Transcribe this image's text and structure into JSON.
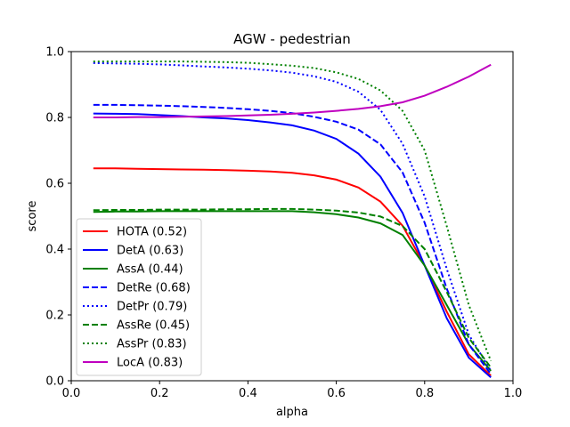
{
  "chart_data": {
    "type": "line",
    "title": "AGW - pedestrian",
    "xlabel": "alpha",
    "ylabel": "score",
    "xlim": [
      0.0,
      1.0
    ],
    "ylim": [
      0.0,
      1.0
    ],
    "xticks": [
      "0.0",
      "0.2",
      "0.4",
      "0.6",
      "0.8",
      "1.0"
    ],
    "yticks": [
      "0.0",
      "0.2",
      "0.4",
      "0.6",
      "0.8",
      "1.0"
    ],
    "grid": false,
    "legend_position": "lower-left",
    "x": [
      0.05,
      0.1,
      0.15,
      0.2,
      0.25,
      0.3,
      0.35,
      0.4,
      0.45,
      0.5,
      0.55,
      0.6,
      0.65,
      0.7,
      0.75,
      0.8,
      0.85,
      0.9,
      0.95
    ],
    "series": [
      {
        "name": "HOTA (0.52)",
        "color": "#ff0000",
        "style": "solid",
        "values": [
          0.645,
          0.645,
          0.644,
          0.643,
          0.642,
          0.641,
          0.64,
          0.638,
          0.636,
          0.632,
          0.624,
          0.611,
          0.587,
          0.544,
          0.471,
          0.35,
          0.21,
          0.08,
          0.015
        ]
      },
      {
        "name": "DetA (0.63)",
        "color": "#0000ff",
        "style": "solid",
        "values": [
          0.812,
          0.811,
          0.81,
          0.807,
          0.804,
          0.8,
          0.797,
          0.792,
          0.785,
          0.776,
          0.76,
          0.735,
          0.69,
          0.62,
          0.51,
          0.35,
          0.19,
          0.07,
          0.01
        ]
      },
      {
        "name": "AssA (0.44)",
        "color": "#008000",
        "style": "solid",
        "values": [
          0.513,
          0.514,
          0.514,
          0.515,
          0.515,
          0.515,
          0.515,
          0.515,
          0.515,
          0.515,
          0.512,
          0.506,
          0.496,
          0.478,
          0.443,
          0.35,
          0.23,
          0.11,
          0.03
        ]
      },
      {
        "name": "DetRe (0.68)",
        "color": "#0000ff",
        "style": "dashed",
        "values": [
          0.838,
          0.838,
          0.837,
          0.836,
          0.834,
          0.832,
          0.829,
          0.825,
          0.82,
          0.813,
          0.802,
          0.787,
          0.763,
          0.718,
          0.633,
          0.48,
          0.28,
          0.11,
          0.02
        ]
      },
      {
        "name": "DetPr (0.79)",
        "color": "#0000ff",
        "style": "dotted",
        "values": [
          0.965,
          0.964,
          0.963,
          0.961,
          0.958,
          0.955,
          0.952,
          0.948,
          0.943,
          0.936,
          0.925,
          0.908,
          0.878,
          0.823,
          0.72,
          0.56,
          0.34,
          0.14,
          0.03
        ]
      },
      {
        "name": "AssRe (0.45)",
        "color": "#008000",
        "style": "dashed",
        "values": [
          0.518,
          0.519,
          0.519,
          0.52,
          0.52,
          0.52,
          0.521,
          0.521,
          0.522,
          0.522,
          0.52,
          0.517,
          0.511,
          0.499,
          0.47,
          0.4,
          0.27,
          0.13,
          0.04
        ]
      },
      {
        "name": "AssPr (0.83)",
        "color": "#008000",
        "style": "dotted",
        "values": [
          0.97,
          0.97,
          0.97,
          0.97,
          0.97,
          0.969,
          0.968,
          0.966,
          0.962,
          0.957,
          0.95,
          0.937,
          0.917,
          0.882,
          0.82,
          0.7,
          0.47,
          0.23,
          0.06
        ]
      },
      {
        "name": "LocA (0.83)",
        "color": "#bf00bf",
        "style": "solid",
        "values": [
          0.8,
          0.8,
          0.801,
          0.801,
          0.802,
          0.803,
          0.804,
          0.806,
          0.808,
          0.811,
          0.815,
          0.82,
          0.826,
          0.834,
          0.846,
          0.866,
          0.893,
          0.924,
          0.96
        ]
      }
    ]
  }
}
